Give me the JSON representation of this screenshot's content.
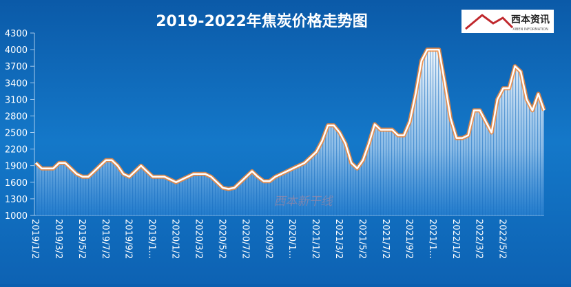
{
  "chart_data": {
    "type": "area",
    "title": "2019-2022年焦炭价格走势图",
    "logo": {
      "name": "西本资讯",
      "subtitle": "XIBEN INFORMATION"
    },
    "watermark": "西本新干线",
    "categories": [
      "2019/1/2",
      null,
      null,
      null,
      "2019/3/2",
      null,
      null,
      null,
      "2019/5/2",
      null,
      null,
      null,
      "2019/7/2",
      null,
      null,
      null,
      "2019/9/2",
      null,
      null,
      null,
      "2019/1...",
      null,
      null,
      null,
      "2020/1/2",
      null,
      null,
      null,
      "2020/3/2",
      null,
      null,
      null,
      "2020/5/2",
      null,
      null,
      null,
      "2020/7/2",
      null,
      null,
      null,
      "2020/9/2",
      null,
      null,
      null,
      "2020/1...",
      null,
      null,
      null,
      "2021/1/2",
      null,
      null,
      null,
      "2021/3/2",
      null,
      null,
      null,
      "2021/5/2",
      null,
      null,
      null,
      "2021/7/2",
      null,
      null,
      null,
      "2021/9/2",
      null,
      null,
      null,
      "2021/1...",
      null,
      null,
      null,
      "2022/1/2",
      null,
      null,
      null,
      "2022/3/2",
      null,
      null,
      null,
      "2022/5/2",
      null,
      null,
      null,
      null,
      null,
      null,
      null
    ],
    "values": [
      1950,
      1850,
      1850,
      1850,
      1950,
      1950,
      1850,
      1750,
      1700,
      1700,
      1800,
      1900,
      2000,
      2000,
      1900,
      1750,
      1700,
      1800,
      1900,
      1800,
      1700,
      1700,
      1700,
      1650,
      1600,
      1650,
      1700,
      1750,
      1750,
      1750,
      1700,
      1600,
      1500,
      1480,
      1500,
      1600,
      1700,
      1800,
      1700,
      1620,
      1620,
      1700,
      1750,
      1800,
      1850,
      1900,
      1950,
      2050,
      2150,
      2350,
      2630,
      2630,
      2500,
      2300,
      1950,
      1850,
      2000,
      2300,
      2650,
      2550,
      2550,
      2550,
      2450,
      2450,
      2700,
      3200,
      3800,
      4000,
      4000,
      4000,
      3400,
      2750,
      2400,
      2400,
      2450,
      2900,
      2900,
      2700,
      2500,
      3100,
      3300,
      3300,
      3700,
      3600,
      3100,
      2900,
      3200,
      2900
    ],
    "color": "#ffffff",
    "line_glow": "#f5883a",
    "ylim": [
      1000,
      4300
    ],
    "yticks": [
      1000,
      1300,
      1600,
      1900,
      2200,
      2500,
      2800,
      3100,
      3400,
      3700,
      4000,
      4300
    ]
  }
}
